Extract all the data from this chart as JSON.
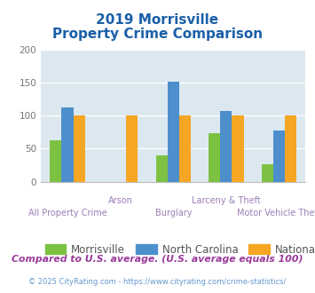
{
  "title_line1": "2019 Morrisville",
  "title_line2": "Property Crime Comparison",
  "categories": [
    "All Property Crime",
    "Arson",
    "Burglary",
    "Larceny & Theft",
    "Motor Vehicle Theft"
  ],
  "series": {
    "Morrisville": [
      63,
      0,
      40,
      73,
      27
    ],
    "North Carolina": [
      112,
      0,
      152,
      107,
      78
    ],
    "National": [
      100,
      100,
      100,
      100,
      100
    ]
  },
  "colors": {
    "Morrisville": "#7dc142",
    "North Carolina": "#4d8fcc",
    "National": "#f5a623"
  },
  "ylim": [
    0,
    200
  ],
  "yticks": [
    0,
    50,
    100,
    150,
    200
  ],
  "background_color": "#dce8f0",
  "title_color": "#1a5fa8",
  "footer_text": "Compared to U.S. average. (U.S. average equals 100)",
  "copyright_text": "© 2025 CityRating.com - https://www.cityrating.com/crime-statistics/",
  "footer_color": "#9b3a9b",
  "copyright_color": "#6699cc",
  "bar_width": 0.22
}
